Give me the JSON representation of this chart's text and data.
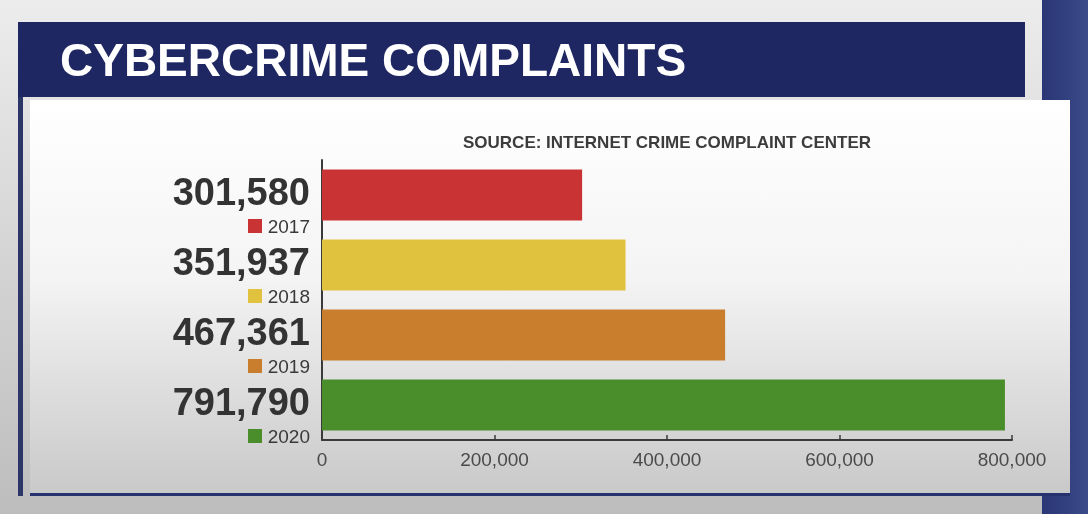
{
  "chart_data": {
    "type": "bar",
    "orientation": "horizontal",
    "title": "CYBERCRIME COMPLAINTS",
    "annotations": [
      "SOURCE: INTERNET CRIME COMPLAINT CENTER"
    ],
    "categories": [
      "2017",
      "2018",
      "2019",
      "2020"
    ],
    "values": [
      301580,
      351937,
      467361,
      791790
    ],
    "value_labels": [
      "301,580",
      "351,937",
      "467,361",
      "791,790"
    ],
    "colors": [
      "#c93333",
      "#e0c23e",
      "#c97e2d",
      "#4a8d2b"
    ],
    "xlim": [
      0,
      800000
    ],
    "xticks": [
      0,
      {
        "value": 200000,
        "label": "200,000"
      },
      {
        "value": 400000,
        "label": "400,000"
      },
      {
        "value": 600000,
        "label": "600,000"
      },
      {
        "value": 800000,
        "label": "800,000"
      }
    ],
    "grid": false
  }
}
